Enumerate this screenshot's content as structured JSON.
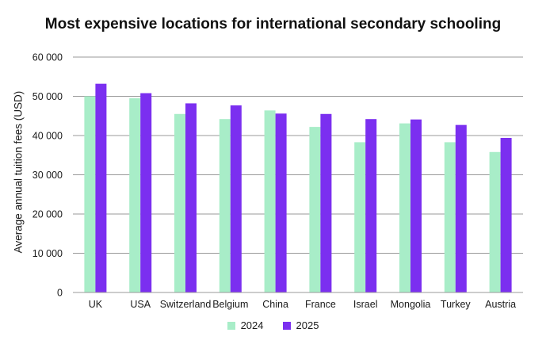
{
  "chart_data": {
    "type": "bar",
    "title": "Most expensive locations for international secondary schooling",
    "xlabel": "",
    "ylabel": "Average annual tuition fees (USD)",
    "ylim": [
      0,
      60000
    ],
    "yticks": [
      0,
      10000,
      20000,
      30000,
      40000,
      50000,
      60000
    ],
    "ytick_labels": [
      "0",
      "10 000",
      "20 000",
      "30 000",
      "40 000",
      "50 000",
      "60 000"
    ],
    "categories": [
      "UK",
      "USA",
      "Switzerland",
      "Belgium",
      "China",
      "France",
      "Israel",
      "Mongolia",
      "Turkey",
      "Austria"
    ],
    "series": [
      {
        "name": "2024",
        "color": "#a8edc8",
        "values": [
          50000,
          49500,
          45500,
          44200,
          46400,
          42200,
          38300,
          43100,
          38300,
          35800
        ]
      },
      {
        "name": "2025",
        "color": "#7b2ff0",
        "values": [
          53200,
          50800,
          48200,
          47700,
          45600,
          45500,
          44200,
          44100,
          42700,
          39400
        ]
      }
    ],
    "grid": true,
    "legend_position": "bottom"
  }
}
